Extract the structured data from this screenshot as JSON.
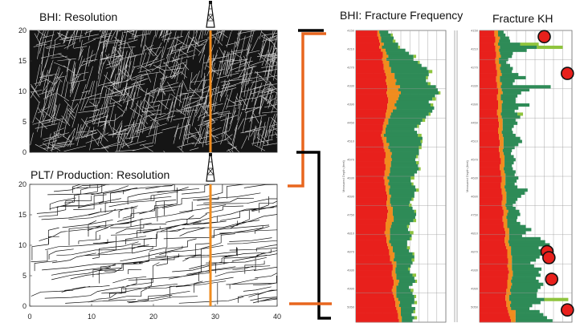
{
  "titles": {
    "bhi": "BHI: Resolution",
    "plt": "PLT/ Production: Resolution",
    "freq": "BHI: Fracture Frequency",
    "kh": "Fracture KH"
  },
  "colors": {
    "red": "#e8201c",
    "orange": "#f08c1e",
    "green": "#2e8b57",
    "lightgreen": "#8fc43e",
    "well": "#f08c1e",
    "bracket_orange": "#e8661e",
    "bracket_black": "#000000",
    "bhi_bg": "#151515",
    "kh_marker": "#e8201c"
  },
  "bhi_plot": {
    "y_ticks": [
      "0",
      "5",
      "10",
      "15",
      "20"
    ],
    "well_x": 30
  },
  "plt_plot": {
    "x_ticks": [
      "0",
      "10",
      "20",
      "30",
      "40"
    ],
    "y_ticks": [
      "0",
      "5",
      "10",
      "15",
      "20"
    ],
    "well_x": 30
  },
  "depth_ticks": [
    "4150",
    "4160",
    "4170",
    "4180",
    "4190",
    "4200",
    "4210",
    "4220",
    "4230",
    "4240",
    "4250",
    "4260",
    "4270",
    "4280",
    "4290",
    "4300",
    "4310",
    "4320",
    "4330",
    "4340",
    "4350",
    "4360",
    "4370",
    "4380",
    "4390",
    "4400",
    "4410",
    "4420",
    "4430",
    "4440",
    "4450",
    "4460",
    "4470",
    "4480",
    "4490",
    "4500",
    "4510",
    "4520",
    "4530",
    "4540",
    "4550",
    "4560",
    "4570",
    "4580",
    "4590",
    "4600",
    "4610",
    "4620",
    "4630",
    "4640",
    "4650",
    "4660",
    "4670",
    "4680",
    "4690",
    "4700",
    "4710",
    "4720",
    "4730",
    "4740",
    "4750",
    "4760",
    "4770",
    "4780",
    "4790",
    "4800",
    "4810",
    "4820",
    "4830",
    "4840",
    "4850",
    "4860",
    "4870",
    "4880",
    "4890",
    "4900",
    "4910",
    "4920",
    "4930",
    "4940",
    "4950",
    "4960",
    "4970",
    "4980",
    "4990",
    "5000",
    "5010",
    "5020",
    "5030",
    "5040",
    "5050",
    "5060",
    "5070",
    "5080",
    "5090",
    "5100"
  ],
  "depth_axis_label": "Measured Depth (feet)",
  "freq_track": {
    "red": [
      0.24,
      0.24,
      0.25,
      0.26,
      0.27,
      0.26,
      0.28,
      0.3,
      0.3,
      0.29,
      0.3,
      0.31,
      0.31,
      0.32,
      0.33,
      0.34,
      0.33,
      0.34,
      0.35,
      0.35,
      0.34,
      0.35,
      0.36,
      0.36,
      0.35,
      0.35,
      0.34,
      0.33,
      0.33,
      0.32,
      0.31,
      0.3,
      0.3,
      0.29,
      0.28,
      0.29,
      0.3,
      0.31,
      0.31,
      0.32,
      0.33,
      0.33,
      0.32,
      0.32,
      0.33,
      0.33,
      0.32,
      0.32,
      0.31,
      0.32,
      0.32,
      0.33,
      0.33,
      0.34,
      0.35,
      0.35,
      0.34,
      0.34,
      0.35,
      0.36,
      0.35,
      0.35,
      0.34,
      0.33,
      0.33,
      0.33,
      0.32,
      0.33,
      0.34,
      0.34,
      0.35,
      0.36,
      0.37,
      0.37,
      0.38,
      0.38,
      0.4,
      0.41,
      0.41,
      0.4,
      0.4,
      0.41,
      0.42,
      0.42,
      0.41,
      0.4,
      0.41,
      0.42,
      0.43,
      0.44,
      0.44,
      0.45,
      0.46,
      0.47,
      0.47,
      0.48
    ],
    "orange": [
      0.02,
      0.03,
      0.03,
      0.02,
      0.04,
      0.03,
      0.05,
      0.04,
      0.06,
      0.05,
      0.07,
      0.06,
      0.08,
      0.07,
      0.1,
      0.09,
      0.12,
      0.1,
      0.14,
      0.12,
      0.16,
      0.13,
      0.11,
      0.09,
      0.08,
      0.1,
      0.07,
      0.06,
      0.05,
      0.04,
      0.05,
      0.04,
      0.03,
      0.04,
      0.03,
      0.05,
      0.04,
      0.06,
      0.05,
      0.06,
      0.07,
      0.06,
      0.08,
      0.07,
      0.06,
      0.05,
      0.06,
      0.05,
      0.04,
      0.05,
      0.04,
      0.05,
      0.04,
      0.03,
      0.04,
      0.03,
      0.04,
      0.05,
      0.06,
      0.05,
      0.06,
      0.07,
      0.08,
      0.07,
      0.06,
      0.05,
      0.06,
      0.05,
      0.04,
      0.03,
      0.04,
      0.05,
      0.04,
      0.06,
      0.05,
      0.04,
      0.05,
      0.04,
      0.03,
      0.04,
      0.05,
      0.04,
      0.06,
      0.05,
      0.04,
      0.05,
      0.04,
      0.03,
      0.04,
      0.05,
      0.04,
      0.05,
      0.04,
      0.03,
      0.04,
      0.03
    ],
    "green": [
      0.1,
      0.12,
      0.14,
      0.13,
      0.16,
      0.18,
      0.22,
      0.25,
      0.28,
      0.3,
      0.32,
      0.36,
      0.4,
      0.42,
      0.38,
      0.35,
      0.33,
      0.36,
      0.4,
      0.44,
      0.42,
      0.4,
      0.38,
      0.36,
      0.4,
      0.42,
      0.44,
      0.42,
      0.4,
      0.38,
      0.36,
      0.34,
      0.32,
      0.35,
      0.38,
      0.4,
      0.38,
      0.36,
      0.34,
      0.32,
      0.3,
      0.28,
      0.26,
      0.28,
      0.3,
      0.32,
      0.3,
      0.28,
      0.26,
      0.24,
      0.26,
      0.28,
      0.3,
      0.28,
      0.26,
      0.24,
      0.22,
      0.2,
      0.22,
      0.24,
      0.26,
      0.24,
      0.22,
      0.2,
      0.18,
      0.2,
      0.22,
      0.24,
      0.22,
      0.2,
      0.18,
      0.16,
      0.18,
      0.2,
      0.22,
      0.2,
      0.18,
      0.16,
      0.14,
      0.16,
      0.18,
      0.2,
      0.18,
      0.16,
      0.14,
      0.16,
      0.18,
      0.2,
      0.18,
      0.16,
      0.14,
      0.16,
      0.14,
      0.12,
      0.14,
      0.12
    ],
    "light": [
      0.0,
      0.02,
      0.0,
      0.03,
      0.0,
      0.02,
      0.0,
      0.0,
      0.03,
      0.0,
      0.02,
      0.0,
      0.0,
      0.04,
      0.0,
      0.02,
      0.0,
      0.03,
      0.0,
      0.0,
      0.02,
      0.0,
      0.04,
      0.0,
      0.03,
      0.0,
      0.0,
      0.02,
      0.0,
      0.03,
      0.0,
      0.02,
      0.0,
      0.0,
      0.04,
      0.0,
      0.02,
      0.0,
      0.03,
      0.0,
      0.0,
      0.02,
      0.0,
      0.03,
      0.0,
      0.02,
      0.0,
      0.0,
      0.04,
      0.0,
      0.02,
      0.0,
      0.03,
      0.0,
      0.0,
      0.02,
      0.0,
      0.03,
      0.0,
      0.02,
      0.0,
      0.0,
      0.03,
      0.0,
      0.02,
      0.0,
      0.04,
      0.0,
      0.02,
      0.0,
      0.0,
      0.03,
      0.0,
      0.02,
      0.0,
      0.03,
      0.0,
      0.0,
      0.02,
      0.0,
      0.04,
      0.0,
      0.02,
      0.0,
      0.0,
      0.03,
      0.0,
      0.02,
      0.0,
      0.03,
      0.0,
      0.0,
      0.02,
      0.0,
      0.03,
      0.0
    ]
  },
  "kh_track": {
    "red": [
      0.16,
      0.16,
      0.17,
      0.17,
      0.16,
      0.17,
      0.17,
      0.18,
      0.18,
      0.17,
      0.17,
      0.18,
      0.18,
      0.19,
      0.19,
      0.18,
      0.18,
      0.19,
      0.19,
      0.2,
      0.2,
      0.19,
      0.19,
      0.2,
      0.2,
      0.2,
      0.19,
      0.19,
      0.2,
      0.2,
      0.21,
      0.21,
      0.2,
      0.2,
      0.21,
      0.21,
      0.22,
      0.22,
      0.21,
      0.21,
      0.22,
      0.22,
      0.23,
      0.23,
      0.22,
      0.22,
      0.23,
      0.23,
      0.24,
      0.24,
      0.23,
      0.23,
      0.24,
      0.24,
      0.25,
      0.25,
      0.24,
      0.24,
      0.25,
      0.26,
      0.26,
      0.25,
      0.25,
      0.26,
      0.26,
      0.27,
      0.28,
      0.28,
      0.27,
      0.27,
      0.28,
      0.29,
      0.3,
      0.3,
      0.3,
      0.31,
      0.31,
      0.3,
      0.31,
      0.32,
      0.31,
      0.31,
      0.3,
      0.3,
      0.3,
      0.29,
      0.29,
      0.28,
      0.28,
      0.29,
      0.29,
      0.3,
      0.31,
      0.32,
      0.33,
      0.34
    ],
    "orange": [
      0.04,
      0.04,
      0.05,
      0.04,
      0.04,
      0.05,
      0.04,
      0.04,
      0.05,
      0.04,
      0.04,
      0.05,
      0.04,
      0.04,
      0.05,
      0.04,
      0.04,
      0.05,
      0.04,
      0.04,
      0.05,
      0.04,
      0.04,
      0.05,
      0.04,
      0.04,
      0.05,
      0.04,
      0.04,
      0.05,
      0.04,
      0.04,
      0.05,
      0.04,
      0.04,
      0.05,
      0.04,
      0.04,
      0.05,
      0.04,
      0.04,
      0.05,
      0.04,
      0.04,
      0.05,
      0.04,
      0.04,
      0.05,
      0.04,
      0.04,
      0.05,
      0.04,
      0.04,
      0.05,
      0.04,
      0.04,
      0.05,
      0.04,
      0.04,
      0.05,
      0.04,
      0.04,
      0.05,
      0.04,
      0.04,
      0.05,
      0.04,
      0.04,
      0.05,
      0.04,
      0.04,
      0.05,
      0.04,
      0.04,
      0.05,
      0.04,
      0.04,
      0.05,
      0.04,
      0.04,
      0.05,
      0.04,
      0.04,
      0.05,
      0.04,
      0.04,
      0.05,
      0.04,
      0.04,
      0.05,
      0.04,
      0.04,
      0.08,
      0.07,
      0.06,
      0.05
    ],
    "green": [
      0.06,
      0.08,
      0.1,
      0.12,
      0.24,
      0.4,
      0.3,
      0.14,
      0.12,
      0.1,
      0.08,
      0.1,
      0.14,
      0.12,
      0.18,
      0.28,
      0.16,
      0.12,
      0.54,
      0.3,
      0.2,
      0.18,
      0.16,
      0.14,
      0.3,
      0.18,
      0.14,
      0.18,
      0.2,
      0.14,
      0.16,
      0.12,
      0.1,
      0.12,
      0.14,
      0.18,
      0.2,
      0.16,
      0.12,
      0.1,
      0.08,
      0.1,
      0.12,
      0.1,
      0.08,
      0.1,
      0.12,
      0.1,
      0.14,
      0.12,
      0.1,
      0.14,
      0.24,
      0.2,
      0.16,
      0.12,
      0.1,
      0.08,
      0.1,
      0.12,
      0.14,
      0.12,
      0.1,
      0.14,
      0.2,
      0.24,
      0.18,
      0.14,
      0.34,
      0.4,
      0.44,
      0.3,
      0.38,
      0.4,
      0.3,
      0.26,
      0.2,
      0.24,
      0.32,
      0.28,
      0.3,
      0.26,
      0.3,
      0.34,
      0.32,
      0.3,
      0.28,
      0.3,
      0.38,
      0.32,
      0.24,
      0.2,
      0.26,
      0.3,
      0.34,
      0.4
    ],
    "light": [
      0.0,
      0.0,
      0.0,
      0.0,
      0.2,
      0.28,
      0.0,
      0.0,
      0.0,
      0.0,
      0.0,
      0.0,
      0.0,
      0.0,
      0.0,
      0.0,
      0.0,
      0.0,
      0.0,
      0.0,
      0.0,
      0.0,
      0.0,
      0.0,
      0.0,
      0.0,
      0.0,
      0.06,
      0.0,
      0.0,
      0.0,
      0.0,
      0.0,
      0.0,
      0.0,
      0.0,
      0.0,
      0.0,
      0.0,
      0.0,
      0.0,
      0.0,
      0.0,
      0.0,
      0.0,
      0.0,
      0.0,
      0.0,
      0.0,
      0.0,
      0.0,
      0.0,
      0.0,
      0.0,
      0.0,
      0.0,
      0.0,
      0.0,
      0.0,
      0.0,
      0.0,
      0.0,
      0.0,
      0.0,
      0.0,
      0.0,
      0.0,
      0.0,
      0.0,
      0.0,
      0.0,
      0.0,
      0.0,
      0.0,
      0.0,
      0.0,
      0.0,
      0.0,
      0.0,
      0.0,
      0.0,
      0.0,
      0.0,
      0.0,
      0.0,
      0.0,
      0.0,
      0.0,
      0.26,
      0.0,
      0.0,
      0.0,
      0.0,
      0.0,
      0.0,
      0.0
    ],
    "markers": [
      {
        "depth": 4170,
        "value": 0.7
      },
      {
        "depth": 4290,
        "value": 0.95
      },
      {
        "depth": 4870,
        "value": 0.73
      },
      {
        "depth": 4890,
        "value": 0.75
      },
      {
        "depth": 4960,
        "value": 0.78
      },
      {
        "depth": 5060,
        "value": 0.95
      }
    ]
  }
}
